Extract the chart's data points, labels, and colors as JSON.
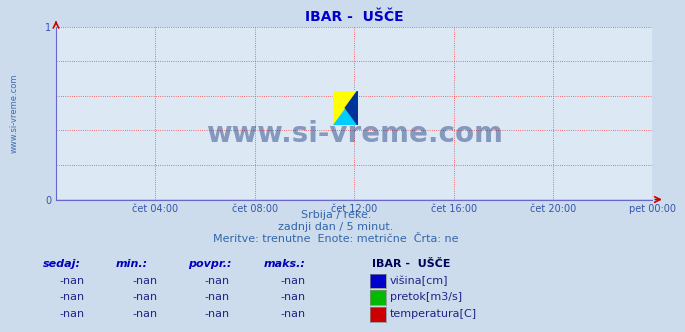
{
  "title": "IBAR -  UŠČE",
  "title_color": "#0000cc",
  "title_fontsize": 10,
  "bg_color": "#ccdcec",
  "plot_bg_color": "#dce8f4",
  "watermark_text": "www.si-vreme.com",
  "watermark_color": "#1a3a7a",
  "watermark_alpha": 0.45,
  "watermark_fontsize": 20,
  "sidebar_text": "www.si-vreme.com",
  "sidebar_color": "#1e4fa0",
  "sidebar_fontsize": 6,
  "xmin": 0,
  "xmax": 288,
  "ymin": 0,
  "ymax": 1,
  "yticks": [
    0,
    1
  ],
  "xtick_labels": [
    "čet 04:00",
    "čet 08:00",
    "čet 12:00",
    "čet 16:00",
    "čet 20:00",
    "pet 00:00"
  ],
  "xtick_positions": [
    48,
    96,
    144,
    192,
    240,
    288
  ],
  "grid_color": "#ee4444",
  "grid_style": ":",
  "grid_linewidth": 0.6,
  "axis_color": "#6666cc",
  "tick_color": "#3355aa",
  "tick_fontsize": 7,
  "subtitle_lines": [
    "Srbija / reke.",
    "zadnji dan / 5 minut.",
    "Meritve: trenutne  Enote: metrične  Črta: ne"
  ],
  "subtitle_color": "#3366aa",
  "subtitle_fontsize": 8,
  "legend_title": "IBAR -  UŠČE",
  "legend_title_color": "#000055",
  "legend_title_fontsize": 8,
  "legend_items": [
    {
      "label": "višina[cm]",
      "color": "#0000cc"
    },
    {
      "label": "pretok[m3/s]",
      "color": "#00bb00"
    },
    {
      "label": "temperatura[C]",
      "color": "#cc0000"
    }
  ],
  "legend_text_color": "#222288",
  "legend_fontsize": 8,
  "table_headers": [
    "sedaj:",
    "min.:",
    "povpr.:",
    "maks.:"
  ],
  "table_values": [
    "-nan",
    "-nan",
    "-nan",
    "-nan"
  ],
  "table_color": "#0000bb",
  "table_fontsize": 8,
  "arrow_color": "#cc0000",
  "logo_yellow": "#ffff00",
  "logo_cyan": "#00ccff",
  "logo_blue": "#003399"
}
